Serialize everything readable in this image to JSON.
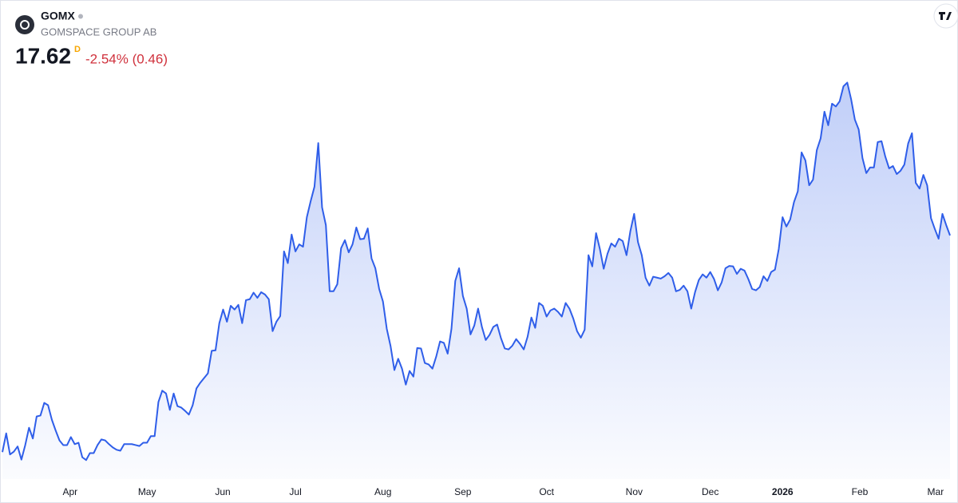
{
  "chart_data": {
    "type": "area",
    "title": "GOMX",
    "subtitle": "GOMSPACE GROUP AB",
    "price": 17.62,
    "interval": "D",
    "change": "-2.54% (0.46)",
    "color": "#2f5ee9",
    "xlim": [
      0,
      249
    ],
    "ylim": [
      12,
      21.5
    ],
    "xticks": [
      {
        "value": 17.8,
        "label": "Apr"
      },
      {
        "value": 38,
        "label": "May"
      },
      {
        "value": 57.9,
        "label": "Jun"
      },
      {
        "value": 77,
        "label": "Jul"
      },
      {
        "value": 100,
        "label": "Aug"
      },
      {
        "value": 121,
        "label": "Sep"
      },
      {
        "value": 143,
        "label": "Oct"
      },
      {
        "value": 166,
        "label": "Nov"
      },
      {
        "value": 186,
        "label": "Dec"
      },
      {
        "value": 205,
        "label": "2026",
        "emphasis": true
      },
      {
        "value": 225.3,
        "label": "Feb"
      },
      {
        "value": 245.2,
        "label": "Mar"
      }
    ],
    "values": [
      13.0,
      13.4,
      12.95,
      13.01,
      13.12,
      12.84,
      13.15,
      13.52,
      13.29,
      13.76,
      13.78,
      14.05,
      14.0,
      13.69,
      13.46,
      13.25,
      13.15,
      13.15,
      13.32,
      13.17,
      13.2,
      12.89,
      12.83,
      12.98,
      12.98,
      13.15,
      13.27,
      13.25,
      13.17,
      13.1,
      13.05,
      13.03,
      13.17,
      13.17,
      13.17,
      13.15,
      13.13,
      13.2,
      13.2,
      13.34,
      13.34,
      14.07,
      14.31,
      14.25,
      13.9,
      14.25,
      13.98,
      13.95,
      13.88,
      13.8,
      14.0,
      14.36,
      14.48,
      14.58,
      14.68,
      15.16,
      15.17,
      15.75,
      16.04,
      15.78,
      16.12,
      16.04,
      16.14,
      15.75,
      16.24,
      16.26,
      16.4,
      16.29,
      16.41,
      16.36,
      16.26,
      15.58,
      15.78,
      15.9,
      17.28,
      17.03,
      17.64,
      17.28,
      17.43,
      17.38,
      18.01,
      18.35,
      18.66,
      19.59,
      18.22,
      17.84,
      16.43,
      16.43,
      16.58,
      17.35,
      17.52,
      17.26,
      17.43,
      17.79,
      17.54,
      17.55,
      17.77,
      17.13,
      16.92,
      16.48,
      16.21,
      15.63,
      15.26,
      14.75,
      14.99,
      14.78,
      14.44,
      14.73,
      14.61,
      15.22,
      15.21,
      14.9,
      14.87,
      14.78,
      15.04,
      15.36,
      15.33,
      15.1,
      15.63,
      16.65,
      16.92,
      16.33,
      16.06,
      15.51,
      15.7,
      16.06,
      15.67,
      15.39,
      15.5,
      15.67,
      15.72,
      15.43,
      15.21,
      15.19,
      15.27,
      15.41,
      15.31,
      15.19,
      15.46,
      15.87,
      15.65,
      16.18,
      16.12,
      15.89,
      16.02,
      16.06,
      15.99,
      15.89,
      16.18,
      16.06,
      15.85,
      15.58,
      15.44,
      15.61,
      17.2,
      16.96,
      17.67,
      17.33,
      16.91,
      17.23,
      17.45,
      17.38,
      17.55,
      17.5,
      17.2,
      17.71,
      18.08,
      17.48,
      17.2,
      16.72,
      16.55,
      16.74,
      16.72,
      16.7,
      16.75,
      16.82,
      16.72,
      16.43,
      16.46,
      16.55,
      16.43,
      16.06,
      16.41,
      16.67,
      16.79,
      16.72,
      16.84,
      16.69,
      16.45,
      16.62,
      16.92,
      16.97,
      16.96,
      16.8,
      16.91,
      16.87,
      16.69,
      16.48,
      16.45,
      16.52,
      16.75,
      16.65,
      16.84,
      16.89,
      17.33,
      18.01,
      17.81,
      17.96,
      18.33,
      18.56,
      19.39,
      19.22,
      18.69,
      18.81,
      19.44,
      19.69,
      20.26,
      19.97,
      20.43,
      20.37,
      20.48,
      20.8,
      20.88,
      20.53,
      20.09,
      19.88,
      19.27,
      18.95,
      19.07,
      19.07,
      19.61,
      19.63,
      19.3,
      19.05,
      19.1,
      18.93,
      19.0,
      19.13,
      19.58,
      19.8,
      18.74,
      18.62,
      18.91,
      18.69,
      17.99,
      17.76,
      17.55,
      18.08,
      17.84,
      17.62
    ]
  }
}
